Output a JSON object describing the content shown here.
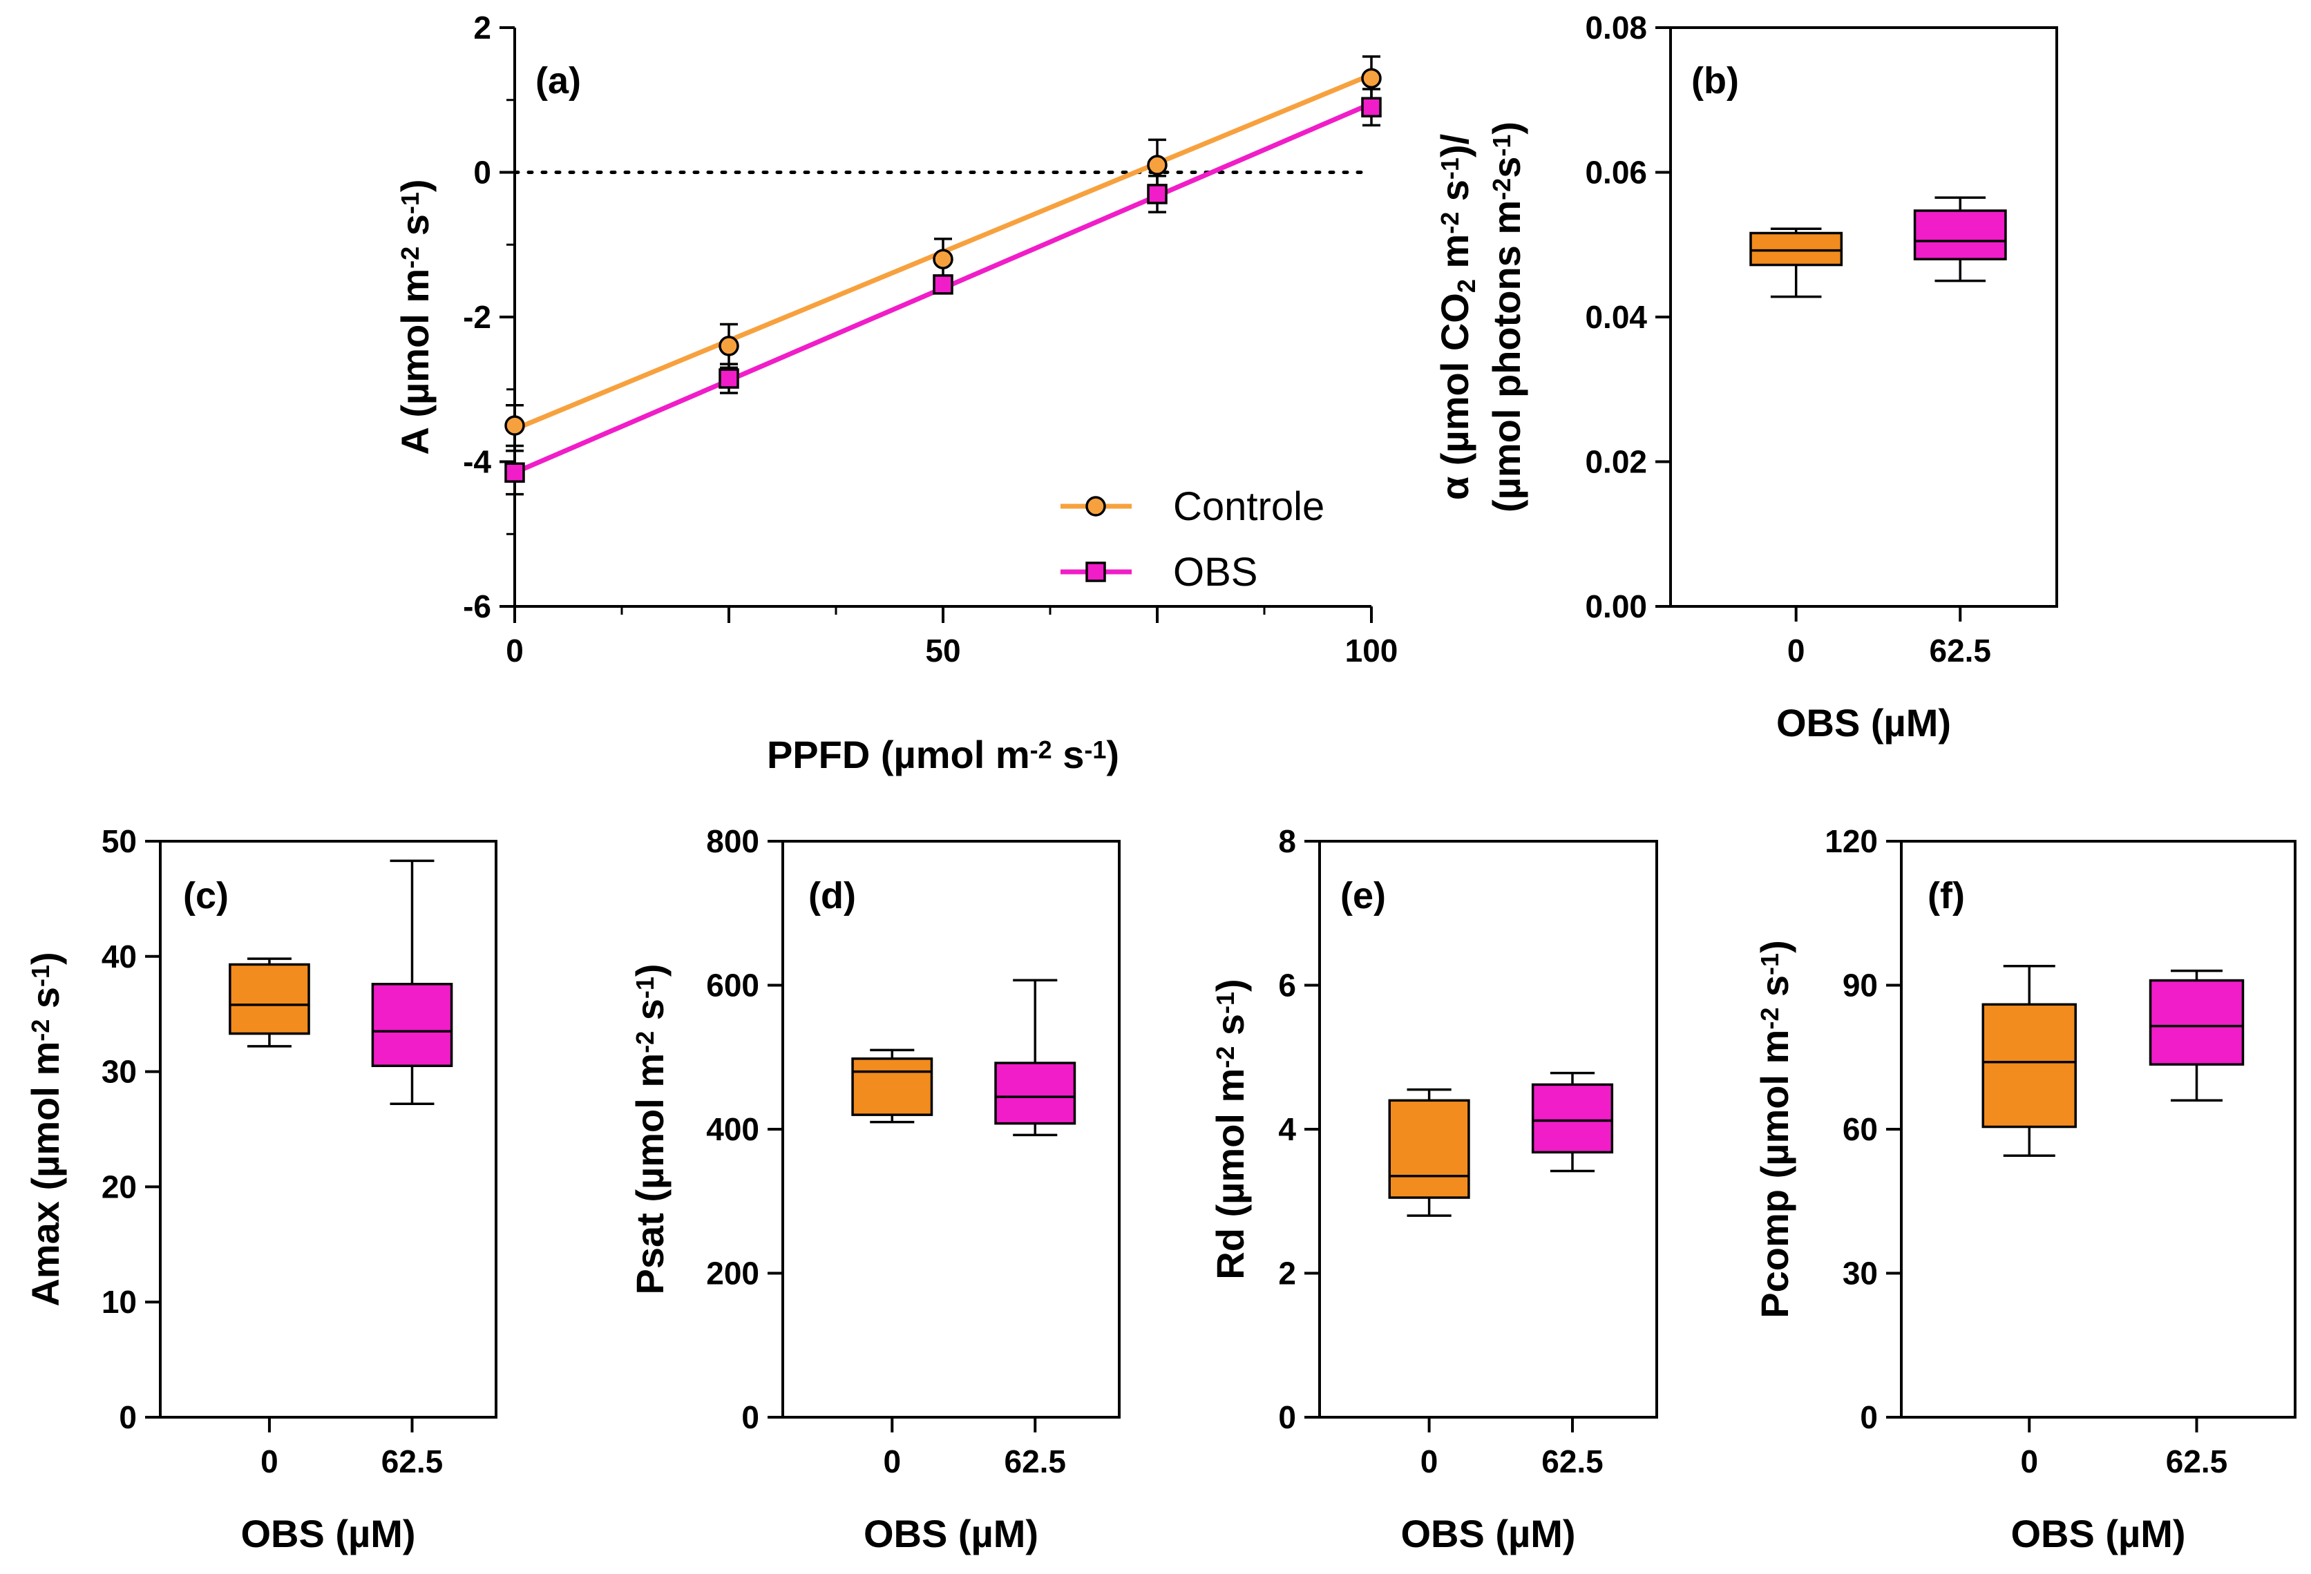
{
  "chart_data": [
    {
      "id": "a",
      "type": "line",
      "panel_label": "(a)",
      "xlabel_parts": [
        "PPFD (µmol m",
        "-2",
        " s",
        "-1",
        ")"
      ],
      "ylabel_parts": [
        "A (µmol m",
        "-2",
        " s",
        "-1",
        ")"
      ],
      "xlim": [
        0,
        100
      ],
      "ylim": [
        -6,
        2
      ],
      "xticks": [
        0,
        50,
        100
      ],
      "xticks_minor": [
        25,
        75
      ],
      "yticks": [
        -6,
        -4,
        -2,
        0,
        2
      ],
      "x_tick_labels": [
        "0",
        "50",
        "100"
      ],
      "y_tick_labels": [
        "-6",
        "-4",
        "-2",
        "0",
        "2"
      ],
      "reference_line": {
        "y": 0,
        "style": "dotted"
      },
      "legend_position": "bottom-right",
      "series": [
        {
          "name": "Controle",
          "marker": "circle",
          "color": "#F7A13E",
          "x": [
            0,
            25,
            50,
            75,
            100
          ],
          "y": [
            -3.5,
            -2.4,
            -1.2,
            0.1,
            1.3
          ],
          "error": [
            0.28,
            0.3,
            0.28,
            0.35,
            0.3
          ],
          "fit": [
            [
              0,
              -3.55
            ],
            [
              100,
              1.35
            ]
          ]
        },
        {
          "name": "OBS",
          "marker": "square",
          "color": "#F01DC8",
          "x": [
            0,
            25,
            50,
            75,
            100
          ],
          "y": [
            -4.15,
            -2.85,
            -1.55,
            -0.3,
            0.9
          ],
          "error": [
            0.3,
            0.2,
            0.12,
            0.25,
            0.25
          ],
          "fit": [
            [
              0,
              -4.15
            ],
            [
              100,
              0.95
            ]
          ]
        }
      ]
    },
    {
      "id": "b",
      "type": "box",
      "panel_label": "(b)",
      "xlabel_parts": [
        "OBS (µM)"
      ],
      "ylabel_line1_parts": [
        "α (µmol CO",
        "2",
        " m",
        "-2",
        " s",
        "-1",
        ")/"
      ],
      "ylabel_line2_parts": [
        "(µmol photons m",
        "-2",
        "s",
        "-1",
        ")"
      ],
      "ylim": [
        0,
        0.08
      ],
      "yticks": [
        0,
        0.02,
        0.04,
        0.06,
        0.08
      ],
      "y_tick_labels": [
        "0.00",
        "0.02",
        "0.04",
        "0.06",
        "0.08"
      ],
      "categories": [
        "0",
        "62.5"
      ],
      "boxes": [
        {
          "min": 0.0428,
          "q1": 0.0472,
          "median": 0.0492,
          "q3": 0.0516,
          "max": 0.0522,
          "color": "#F28C1E"
        },
        {
          "min": 0.045,
          "q1": 0.048,
          "median": 0.0505,
          "q3": 0.0547,
          "max": 0.0565,
          "color": "#F01DC8"
        }
      ]
    },
    {
      "id": "c",
      "type": "box",
      "panel_label": "(c)",
      "xlabel_parts": [
        "OBS (µM)"
      ],
      "ylabel_parts": [
        "Amax (µmol m",
        "-2",
        " s",
        "-1",
        ")"
      ],
      "ylim": [
        0,
        50
      ],
      "yticks": [
        0,
        10,
        20,
        30,
        40,
        50
      ],
      "y_tick_labels": [
        "0",
        "10",
        "20",
        "30",
        "40",
        "50"
      ],
      "categories": [
        "0",
        "62.5"
      ],
      "boxes": [
        {
          "min": 32.2,
          "q1": 33.3,
          "median": 35.8,
          "q3": 39.3,
          "max": 39.8,
          "color": "#F28C1E"
        },
        {
          "min": 27.2,
          "q1": 30.5,
          "median": 33.5,
          "q3": 37.6,
          "max": 48.3,
          "color": "#F01DC8"
        }
      ]
    },
    {
      "id": "d",
      "type": "box",
      "panel_label": "(d)",
      "xlabel_parts": [
        "OBS (µM)"
      ],
      "ylabel_parts": [
        "Psat (µmol m",
        "-2",
        " s",
        "-1",
        ")"
      ],
      "ylim": [
        0,
        800
      ],
      "yticks": [
        0,
        200,
        400,
        600,
        800
      ],
      "y_tick_labels": [
        "0",
        "200",
        "400",
        "600",
        "800"
      ],
      "categories": [
        "0",
        "62.5"
      ],
      "boxes": [
        {
          "min": 410,
          "q1": 420,
          "median": 480,
          "q3": 498,
          "max": 510,
          "color": "#F28C1E"
        },
        {
          "min": 392,
          "q1": 408,
          "median": 445,
          "q3": 492,
          "max": 607,
          "color": "#F01DC8"
        }
      ]
    },
    {
      "id": "e",
      "type": "box",
      "panel_label": "(e)",
      "xlabel_parts": [
        "OBS (µM)"
      ],
      "ylabel_parts": [
        "Rd (µmol m",
        "-2",
        " s",
        "-1",
        ")"
      ],
      "ylim": [
        0,
        8
      ],
      "yticks": [
        0,
        2,
        4,
        6,
        8
      ],
      "y_tick_labels": [
        "0",
        "2",
        "4",
        "6",
        "8"
      ],
      "categories": [
        "0",
        "62.5"
      ],
      "boxes": [
        {
          "min": 2.8,
          "q1": 3.05,
          "median": 3.35,
          "q3": 4.4,
          "max": 4.55,
          "color": "#F28C1E"
        },
        {
          "min": 3.42,
          "q1": 3.68,
          "median": 4.12,
          "q3": 4.62,
          "max": 4.78,
          "color": "#F01DC8"
        }
      ]
    },
    {
      "id": "f",
      "type": "box",
      "panel_label": "(f)",
      "xlabel_parts": [
        "OBS (µM)"
      ],
      "ylabel_parts": [
        "Pcomp (µmol m",
        "-2",
        " s",
        "-1",
        ")"
      ],
      "ylim": [
        0,
        120
      ],
      "yticks": [
        0,
        30,
        60,
        90,
        120
      ],
      "y_tick_labels": [
        "0",
        "30",
        "60",
        "90",
        "120"
      ],
      "categories": [
        "0",
        "62.5"
      ],
      "boxes": [
        {
          "min": 54.5,
          "q1": 60.5,
          "median": 74,
          "q3": 86,
          "max": 94,
          "color": "#F28C1E"
        },
        {
          "min": 66,
          "q1": 73.5,
          "median": 81.5,
          "q3": 91,
          "max": 93,
          "color": "#F01DC8"
        }
      ]
    }
  ]
}
